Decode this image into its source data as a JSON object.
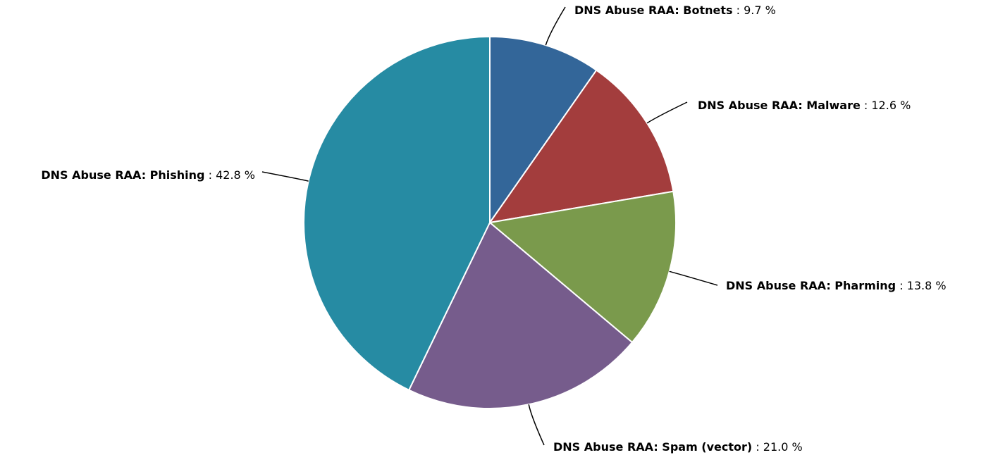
{
  "chart_data": {
    "type": "pie",
    "title": "",
    "slices": [
      {
        "label": "DNS Abuse RAA: Botnets",
        "value": 9.7,
        "display": "9.7 %",
        "color": "#336699"
      },
      {
        "label": "DNS Abuse RAA: Malware",
        "value": 12.6,
        "display": "12.6 %",
        "color": "#A33D3D"
      },
      {
        "label": "DNS Abuse RAA: Pharming",
        "value": 13.8,
        "display": "13.8 %",
        "color": "#7A9A4C"
      },
      {
        "label": "DNS Abuse RAA: Spam (vector)",
        "value": 21.0,
        "display": "21.0 %",
        "color": "#765C8C"
      },
      {
        "label": "DNS Abuse RAA: Phishing",
        "value": 42.8,
        "display": "42.8 %",
        "color": "#268BA3"
      }
    ],
    "start_angle": "12 o'clock",
    "direction": "clockwise",
    "legend": "none (labels on slices)",
    "value_separator": " : "
  }
}
